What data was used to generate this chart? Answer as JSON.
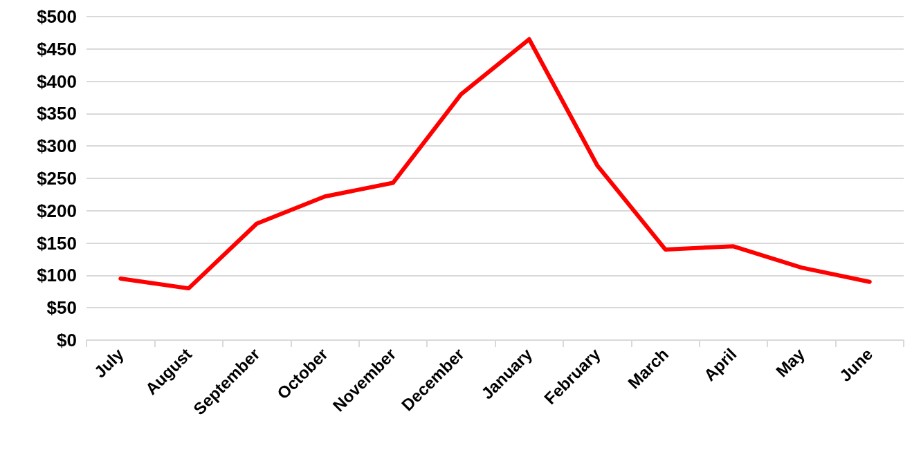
{
  "chart_data": {
    "type": "line",
    "categories": [
      "July",
      "August",
      "September",
      "October",
      "November",
      "December",
      "January",
      "February",
      "March",
      "April",
      "May",
      "June"
    ],
    "series": [
      {
        "color": "#ff0000",
        "values": [
          95,
          80,
          180,
          222,
          243,
          380,
          465,
          270,
          140,
          145,
          112,
          90
        ]
      }
    ],
    "ylim": [
      0,
      500
    ],
    "yticks": [
      {
        "value": 0,
        "label": "$0"
      },
      {
        "value": 50,
        "label": "$50"
      },
      {
        "value": 100,
        "label": "$100"
      },
      {
        "value": 150,
        "label": "$150"
      },
      {
        "value": 200,
        "label": "$200"
      },
      {
        "value": 250,
        "label": "$250"
      },
      {
        "value": 300,
        "label": "$300"
      },
      {
        "value": 350,
        "label": "$350"
      },
      {
        "value": 400,
        "label": "$400"
      },
      {
        "value": 450,
        "label": "$450"
      },
      {
        "value": 500,
        "label": "$500"
      }
    ],
    "grid": "y",
    "marker": "none",
    "line_style": "solid"
  }
}
